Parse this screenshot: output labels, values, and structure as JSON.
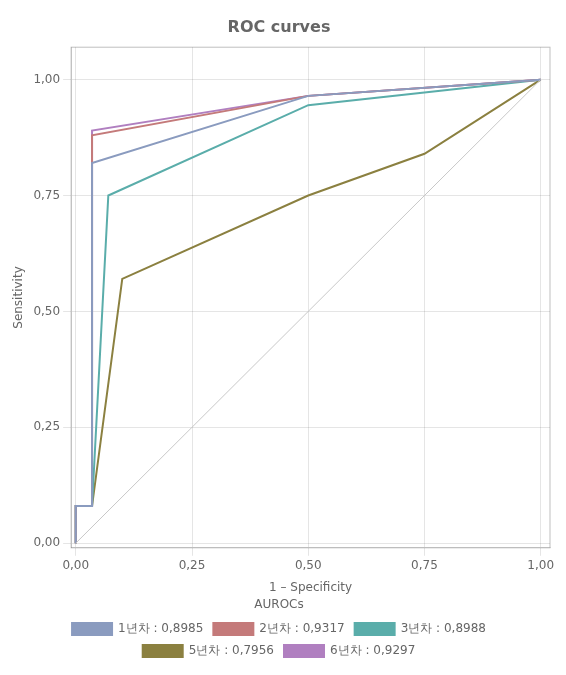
{
  "chart_data": {
    "type": "line",
    "title": "ROC curves",
    "xlabel": "1 – Specificity",
    "ylabel": "Sensitivity",
    "xlim": [
      -0.01,
      1.02
    ],
    "ylim": [
      -0.01,
      1.07
    ],
    "xticks": [
      {
        "value": 0.0,
        "label": "0,00"
      },
      {
        "value": 0.25,
        "label": "0,25"
      },
      {
        "value": 0.5,
        "label": "0,50"
      },
      {
        "value": 0.75,
        "label": "0,75"
      },
      {
        "value": 1.0,
        "label": "1,00"
      }
    ],
    "yticks": [
      {
        "value": 0.0,
        "label": "0,00"
      },
      {
        "value": 0.25,
        "label": "0,25"
      },
      {
        "value": 0.5,
        "label": "0,50"
      },
      {
        "value": 0.75,
        "label": "0,75"
      },
      {
        "value": 1.0,
        "label": "1,00"
      }
    ],
    "grid": true,
    "legend": "bottom",
    "legend_title": "AUROCs",
    "diagonal": {
      "x": [
        0,
        1
      ],
      "values": [
        0,
        1
      ],
      "color": "#c8c8c8"
    },
    "series": [
      {
        "name": "1년차 : 0,8985",
        "color": "#8a9bbf",
        "x": [
          0.0,
          0.0,
          0.035,
          0.035,
          0.5,
          1.0
        ],
        "values": [
          0.0,
          0.08,
          0.08,
          0.82,
          0.965,
          1.0
        ]
      },
      {
        "name": "2년차 : 0,9317",
        "color": "#c47a7a",
        "x": [
          0.0,
          0.0,
          0.035,
          0.035,
          0.5,
          1.0
        ],
        "values": [
          0.0,
          0.08,
          0.08,
          0.88,
          0.965,
          1.0
        ]
      },
      {
        "name": "3년차 : 0,8988",
        "color": "#5aadaa",
        "x": [
          0.0,
          0.0,
          0.035,
          0.07,
          0.5,
          1.0
        ],
        "values": [
          0.0,
          0.08,
          0.08,
          0.75,
          0.945,
          1.0
        ]
      },
      {
        "name": "5년차 : 0,7956",
        "color": "#8b8040",
        "x": [
          0.0,
          0.0,
          0.035,
          0.1,
          0.5,
          0.75,
          1.0
        ],
        "values": [
          0.0,
          0.08,
          0.08,
          0.57,
          0.75,
          0.84,
          1.0
        ]
      },
      {
        "name": "6년차 : 0,9297",
        "color": "#b07fc0",
        "x": [
          0.0,
          0.0,
          0.035,
          0.035,
          0.5,
          1.0
        ],
        "values": [
          0.0,
          0.08,
          0.08,
          0.89,
          0.965,
          1.0
        ]
      }
    ]
  }
}
